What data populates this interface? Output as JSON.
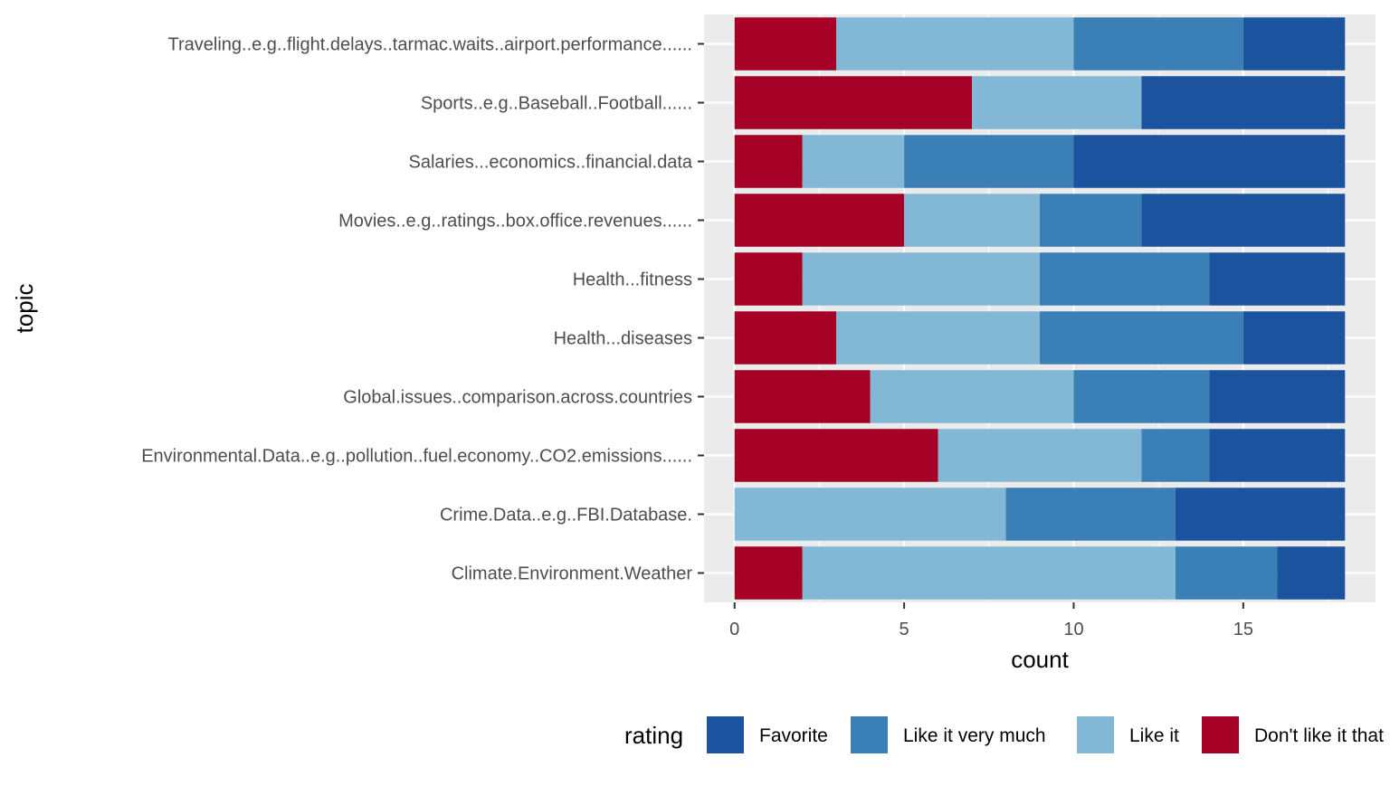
{
  "chart_data": {
    "type": "bar",
    "orientation": "horizontal",
    "stacked": true,
    "xlabel": "count",
    "ylabel": "topic",
    "xlim": [
      -0.9,
      18.9
    ],
    "x_ticks": [
      0,
      5,
      10,
      15
    ],
    "grid": true,
    "legend_position": "bottom",
    "legend_title": "rating",
    "legend_entries": [
      "Favorite",
      "Like it very much",
      "Like it",
      "Don't like it that much"
    ],
    "categories": [
      "Traveling..e.g..flight.delays..tarmac.waits..airport.performance......",
      "Sports..e.g..Baseball..Football......",
      "Salaries...economics..financial.data",
      "Movies..e.g..ratings..box.office.revenues......",
      "Health...fitness",
      "Health...diseases",
      "Global.issues..comparison.across.countries",
      "Environmental.Data..e.g..pollution..fuel.economy..CO2.emissions......",
      "Crime.Data..e.g..FBI.Database.",
      "Climate.Environment.Weather"
    ],
    "series": [
      {
        "name": "Don't like it that much",
        "color": "#a50026",
        "values": [
          3,
          7,
          2,
          5,
          2,
          3,
          4,
          6,
          0,
          2
        ]
      },
      {
        "name": "Like it",
        "color": "#82b7d6",
        "values": [
          7,
          5,
          3,
          4,
          7,
          6,
          6,
          6,
          8,
          11
        ]
      },
      {
        "name": "Like it very much",
        "color": "#3a7fb6",
        "values": [
          5,
          0,
          5,
          3,
          5,
          6,
          4,
          2,
          5,
          3
        ]
      },
      {
        "name": "Favorite",
        "color": "#1b539e",
        "values": [
          3,
          6,
          8,
          6,
          4,
          3,
          4,
          4,
          5,
          2
        ]
      }
    ]
  },
  "colors": {
    "panel_background": "#ebebeb",
    "grid_line": "#ffffff",
    "tick_text": "#4d4d4d"
  }
}
